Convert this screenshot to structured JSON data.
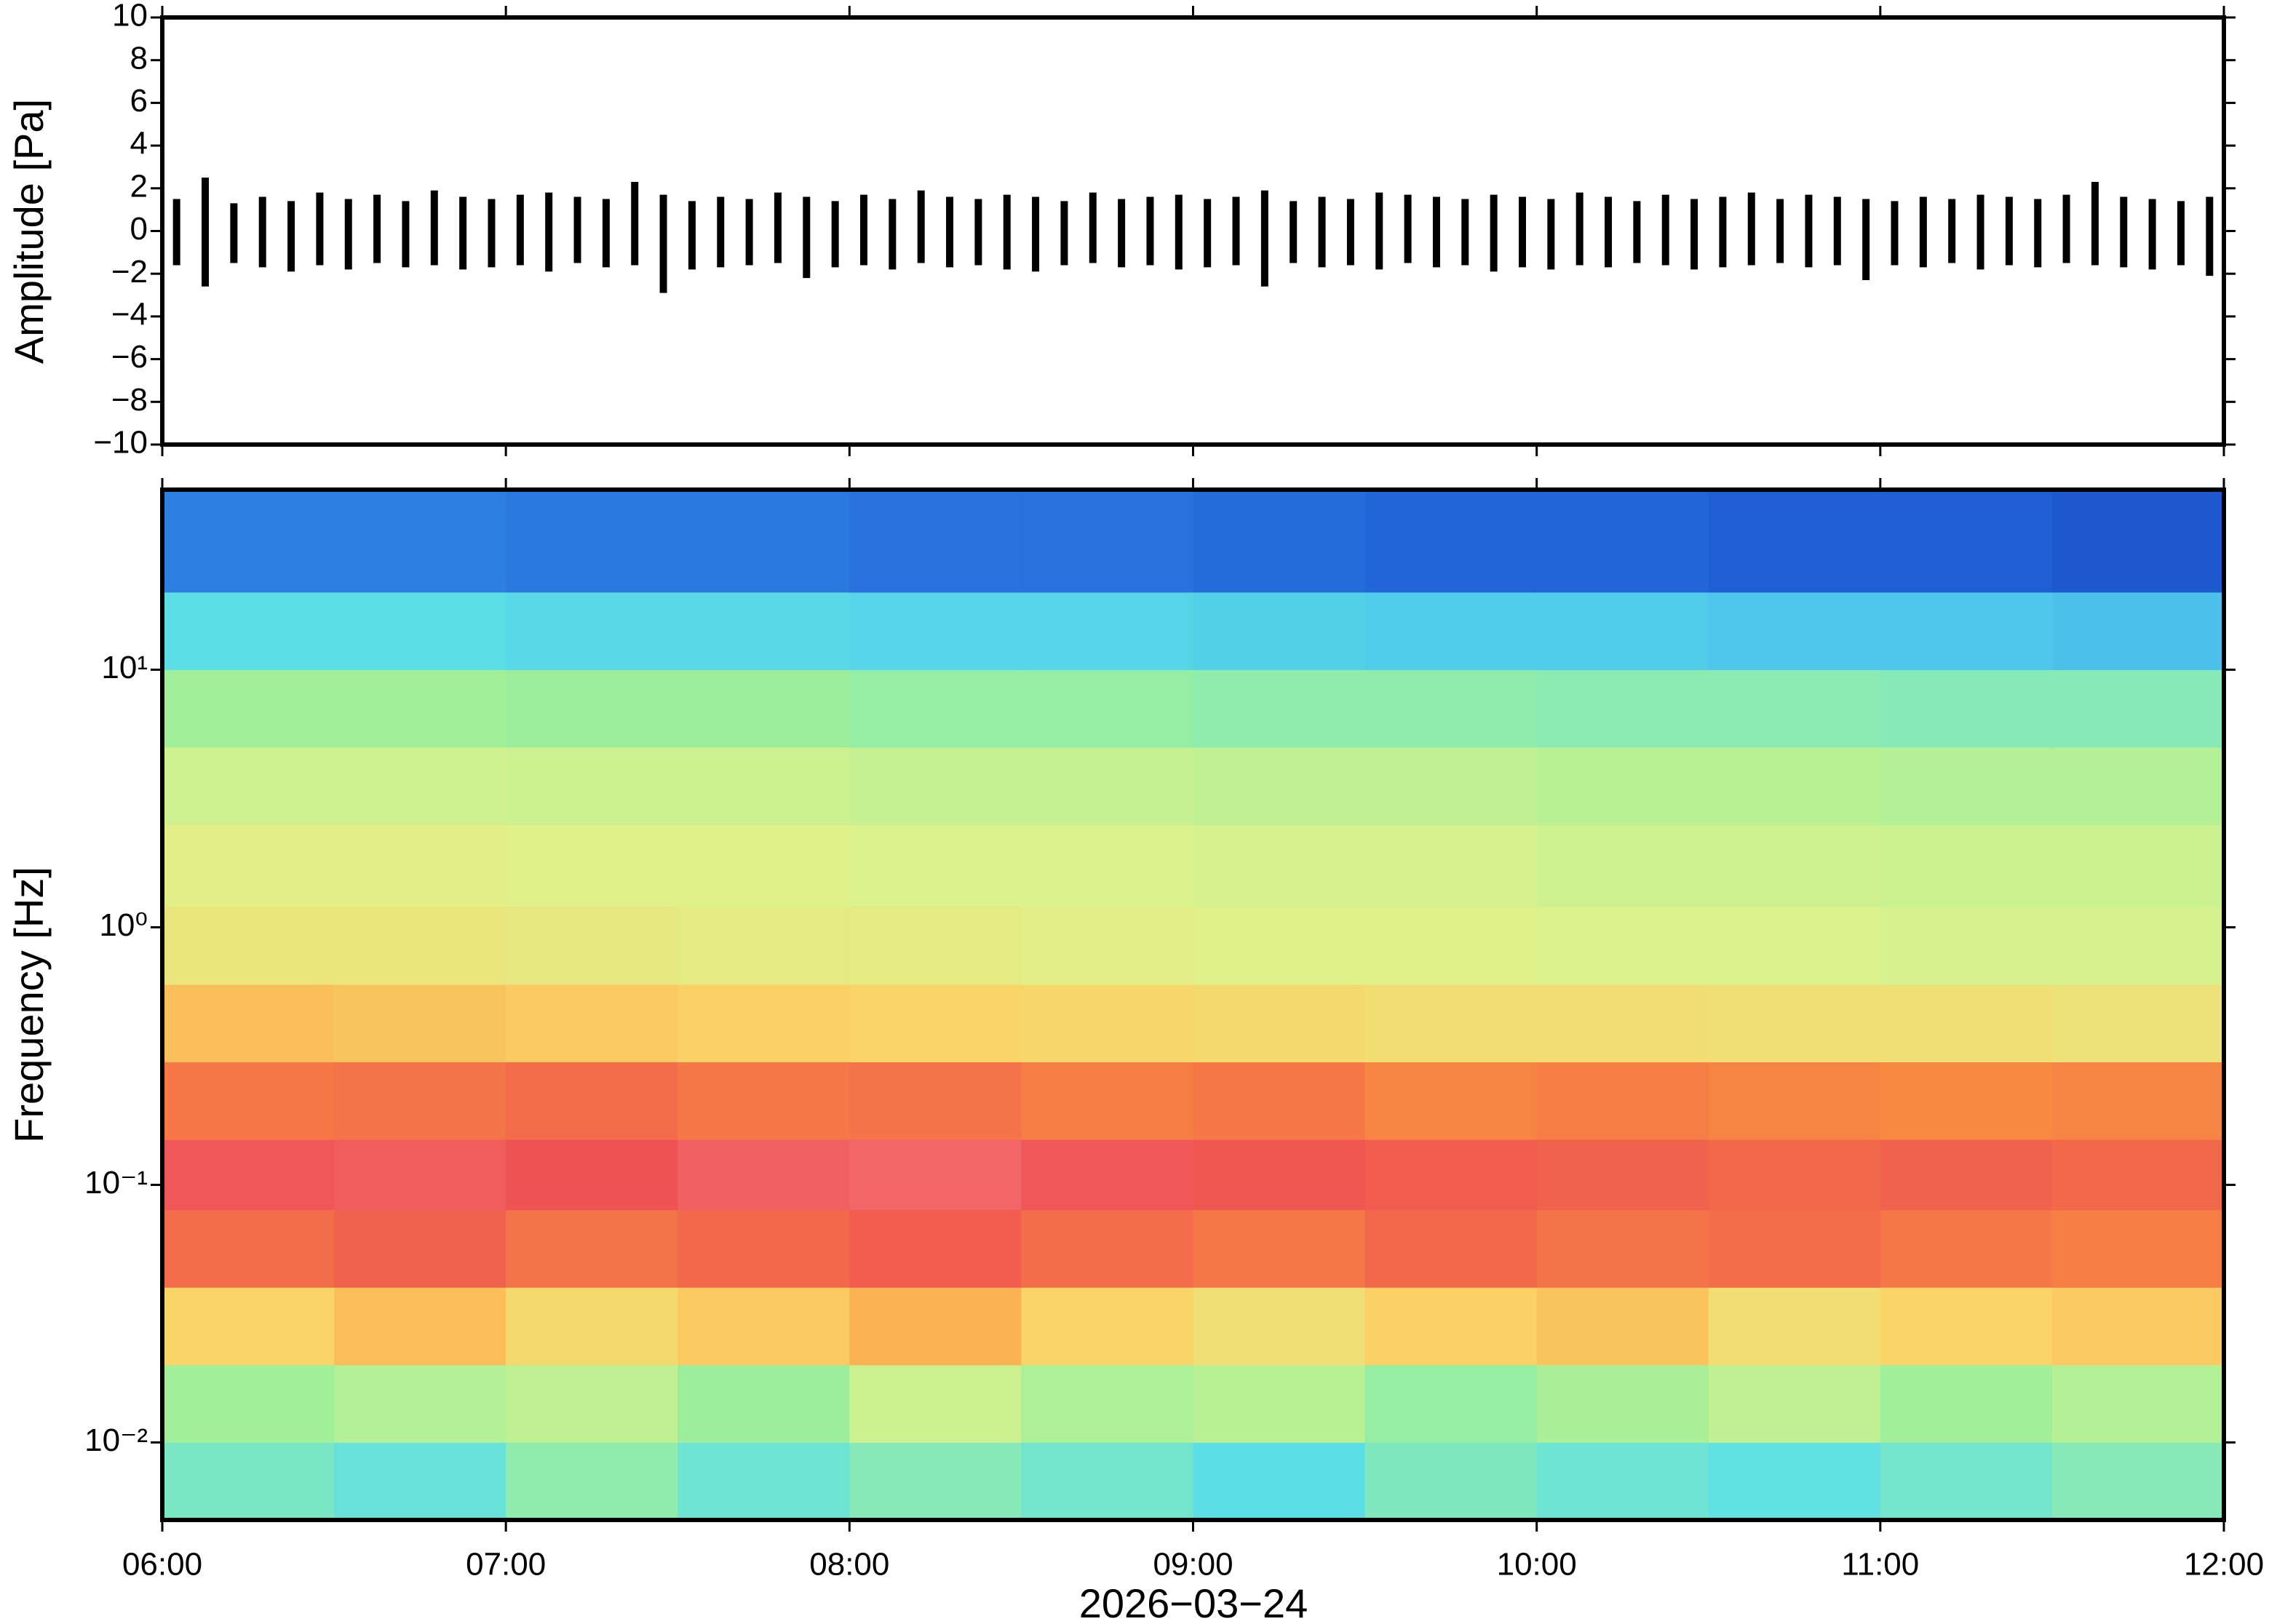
{
  "chart_data": [
    {
      "type": "envelope",
      "ylabel": "Amplitude [Pa]",
      "color": "#000000",
      "xlim": [
        "06:00",
        "12:00"
      ],
      "ylim": [
        -10,
        10
      ],
      "yticks": [
        {
          "value": -10,
          "label": "−10"
        },
        {
          "value": -8,
          "label": "−8"
        },
        {
          "value": -6,
          "label": "−6"
        },
        {
          "value": -4,
          "label": "−4"
        },
        {
          "value": -2,
          "label": "−2"
        },
        0,
        2,
        4,
        6,
        8,
        10
      ],
      "x": [
        "06:00",
        "06:05",
        "06:10",
        "06:15",
        "06:20",
        "06:25",
        "06:30",
        "06:35",
        "06:40",
        "06:45",
        "06:50",
        "06:55",
        "07:00",
        "07:05",
        "07:10",
        "07:15",
        "07:20",
        "07:25",
        "07:30",
        "07:35",
        "07:40",
        "07:45",
        "07:50",
        "07:55",
        "08:00",
        "08:05",
        "08:10",
        "08:15",
        "08:20",
        "08:25",
        "08:30",
        "08:35",
        "08:40",
        "08:45",
        "08:50",
        "08:55",
        "09:00",
        "09:05",
        "09:10",
        "09:15",
        "09:20",
        "09:25",
        "09:30",
        "09:35",
        "09:40",
        "09:45",
        "09:50",
        "09:55",
        "10:00",
        "10:05",
        "10:10",
        "10:15",
        "10:20",
        "10:25",
        "10:30",
        "10:35",
        "10:40",
        "10:45",
        "10:50",
        "10:55",
        "11:00",
        "11:05",
        "11:10",
        "11:15",
        "11:20",
        "11:25",
        "11:30",
        "11:35",
        "11:40",
        "11:45",
        "11:50",
        "11:55"
      ],
      "upper": [
        1.5,
        2.5,
        1.3,
        1.6,
        1.4,
        1.8,
        1.5,
        1.7,
        1.4,
        1.9,
        1.6,
        1.5,
        1.7,
        1.8,
        1.6,
        1.5,
        2.3,
        1.7,
        1.4,
        1.6,
        1.5,
        1.8,
        1.6,
        1.4,
        1.7,
        1.5,
        1.9,
        1.6,
        1.5,
        1.7,
        1.6,
        1.4,
        1.8,
        1.5,
        1.6,
        1.7,
        1.5,
        1.6,
        1.9,
        1.4,
        1.6,
        1.5,
        1.8,
        1.7,
        1.6,
        1.5,
        1.7,
        1.6,
        1.5,
        1.8,
        1.6,
        1.4,
        1.7,
        1.5,
        1.6,
        1.8,
        1.5,
        1.7,
        1.6,
        1.5,
        1.4,
        1.6,
        1.5,
        1.7,
        1.6,
        1.5,
        1.7,
        2.3,
        1.6,
        1.5,
        1.4,
        1.6
      ],
      "lower": [
        -1.6,
        -2.6,
        -1.5,
        -1.7,
        -1.9,
        -1.6,
        -1.8,
        -1.5,
        -1.7,
        -1.6,
        -1.8,
        -1.7,
        -1.6,
        -1.9,
        -1.5,
        -1.7,
        -1.6,
        -2.9,
        -1.8,
        -1.7,
        -1.6,
        -1.5,
        -2.2,
        -1.7,
        -1.6,
        -1.8,
        -1.5,
        -1.7,
        -1.6,
        -1.8,
        -1.9,
        -1.6,
        -1.5,
        -1.7,
        -1.6,
        -1.8,
        -1.7,
        -1.6,
        -2.6,
        -1.5,
        -1.7,
        -1.6,
        -1.8,
        -1.5,
        -1.7,
        -1.6,
        -1.9,
        -1.7,
        -1.8,
        -1.6,
        -1.7,
        -1.5,
        -1.6,
        -1.8,
        -1.7,
        -1.6,
        -1.5,
        -1.7,
        -1.6,
        -2.3,
        -1.6,
        -1.7,
        -1.5,
        -1.8,
        -1.6,
        -1.7,
        -1.5,
        -1.6,
        -1.7,
        -1.8,
        -1.6,
        -2.1
      ]
    },
    {
      "type": "heatmap",
      "ylabel": "Frequency [Hz]",
      "xlabel": "2026−03−24",
      "log_y": true,
      "xlim": [
        "06:00",
        "12:00"
      ],
      "xticks": [
        "06:00",
        "07:00",
        "08:00",
        "09:00",
        "10:00",
        "11:00",
        "12:00"
      ],
      "ylim": [
        0.005,
        50
      ],
      "yticks": [
        {
          "value": 0.01,
          "label": "10⁻²"
        },
        {
          "value": 0.1,
          "label": "10⁻¹"
        },
        {
          "value": 1,
          "label": "10⁰"
        },
        {
          "value": 10,
          "label": "10¹"
        }
      ],
      "x": [
        "06:00",
        "06:30",
        "07:00",
        "07:30",
        "08:00",
        "08:30",
        "09:00",
        "09:30",
        "10:00",
        "10:30",
        "11:00",
        "11:30"
      ],
      "y_edges": [
        0.005,
        0.01,
        0.02,
        0.04,
        0.08,
        0.15,
        0.3,
        0.6,
        1.2,
        2.5,
        5,
        10,
        20,
        50
      ],
      "colormap": [
        "#0a1a8c",
        "#1f5fd6",
        "#3fa9f0",
        "#5de0e6",
        "#9fef9a",
        "#dff28c",
        "#fbd265",
        "#f8903f",
        "#ef5252",
        "#f7878a"
      ],
      "z": [
        [
          0.38,
          0.35,
          0.42,
          0.36,
          0.4,
          0.37,
          0.33,
          0.39,
          0.36,
          0.34,
          0.37,
          0.4
        ],
        [
          0.45,
          0.48,
          0.5,
          0.44,
          0.52,
          0.47,
          0.49,
          0.43,
          0.46,
          0.5,
          0.45,
          0.48
        ],
        [
          0.66,
          0.7,
          0.64,
          0.68,
          0.72,
          0.66,
          0.62,
          0.67,
          0.69,
          0.63,
          0.66,
          0.68
        ],
        [
          0.84,
          0.86,
          0.83,
          0.85,
          0.87,
          0.84,
          0.82,
          0.85,
          0.83,
          0.84,
          0.82,
          0.81
        ],
        [
          0.9,
          0.91,
          0.89,
          0.92,
          0.93,
          0.9,
          0.88,
          0.87,
          0.86,
          0.85,
          0.86,
          0.85
        ],
        [
          0.82,
          0.83,
          0.84,
          0.82,
          0.83,
          0.81,
          0.82,
          0.8,
          0.81,
          0.8,
          0.79,
          0.8
        ],
        [
          0.7,
          0.69,
          0.68,
          0.67,
          0.66,
          0.65,
          0.64,
          0.63,
          0.63,
          0.62,
          0.62,
          0.61
        ],
        [
          0.6,
          0.6,
          0.59,
          0.58,
          0.58,
          0.57,
          0.56,
          0.56,
          0.55,
          0.55,
          0.54,
          0.54
        ],
        [
          0.57,
          0.57,
          0.56,
          0.56,
          0.55,
          0.55,
          0.54,
          0.54,
          0.53,
          0.53,
          0.52,
          0.52
        ],
        [
          0.53,
          0.53,
          0.52,
          0.52,
          0.51,
          0.51,
          0.5,
          0.5,
          0.49,
          0.49,
          0.48,
          0.48
        ],
        [
          0.45,
          0.45,
          0.44,
          0.44,
          0.43,
          0.43,
          0.42,
          0.42,
          0.41,
          0.41,
          0.4,
          0.4
        ],
        [
          0.33,
          0.33,
          0.32,
          0.32,
          0.31,
          0.31,
          0.3,
          0.29,
          0.29,
          0.28,
          0.28,
          0.27
        ],
        [
          0.16,
          0.16,
          0.15,
          0.15,
          0.14,
          0.14,
          0.13,
          0.12,
          0.12,
          0.11,
          0.11,
          0.1
        ]
      ]
    }
  ]
}
